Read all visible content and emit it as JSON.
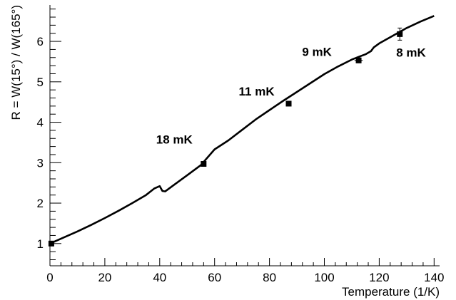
{
  "chart_data": {
    "type": "line",
    "title": "",
    "xlabel": "Temperature (1/K)",
    "ylabel": "R = W(15°) / W(165°)",
    "xlim": [
      0,
      142
    ],
    "ylim": [
      0.45,
      6.9
    ],
    "x_ticks": [
      0,
      20,
      40,
      60,
      80,
      100,
      120,
      140
    ],
    "y_ticks": [
      1,
      2,
      3,
      4,
      5,
      6
    ],
    "grid": false,
    "series": [
      {
        "type": "line",
        "x": [
          0,
          5,
          10,
          15,
          20,
          25,
          30,
          35,
          38,
          40,
          41,
          42,
          45,
          50,
          55,
          60,
          65,
          70,
          75,
          80,
          85,
          90,
          95,
          100,
          105,
          110,
          113,
          115,
          116,
          117,
          118,
          120,
          125,
          130,
          135,
          140
        ],
        "y": [
          1.0,
          1.15,
          1.3,
          1.46,
          1.63,
          1.81,
          2.0,
          2.2,
          2.36,
          2.42,
          2.3,
          2.29,
          2.44,
          2.69,
          2.94,
          3.33,
          3.55,
          3.81,
          4.07,
          4.3,
          4.53,
          4.75,
          4.97,
          5.19,
          5.38,
          5.55,
          5.63,
          5.68,
          5.72,
          5.76,
          5.85,
          5.95,
          6.14,
          6.33,
          6.49,
          6.63
        ]
      },
      {
        "type": "scatter",
        "x": [
          0.5,
          56,
          87,
          112.5,
          127.5
        ],
        "y": [
          1.0,
          2.97,
          4.46,
          5.53,
          6.18
        ],
        "y_err": [
          0.02,
          0.03,
          0.04,
          0.06,
          0.15
        ],
        "x_err": [
          0,
          0,
          0,
          1.5,
          0
        ]
      }
    ],
    "annotations": [
      {
        "text": "18 mK",
        "x": 38.7,
        "y": 3.47
      },
      {
        "text": "11 mK",
        "x": 68.8,
        "y": 4.66
      },
      {
        "text": "9 mK",
        "x": 91.9,
        "y": 5.64
      },
      {
        "text": "8 mK",
        "x": 126.2,
        "y": 5.62
      }
    ]
  }
}
